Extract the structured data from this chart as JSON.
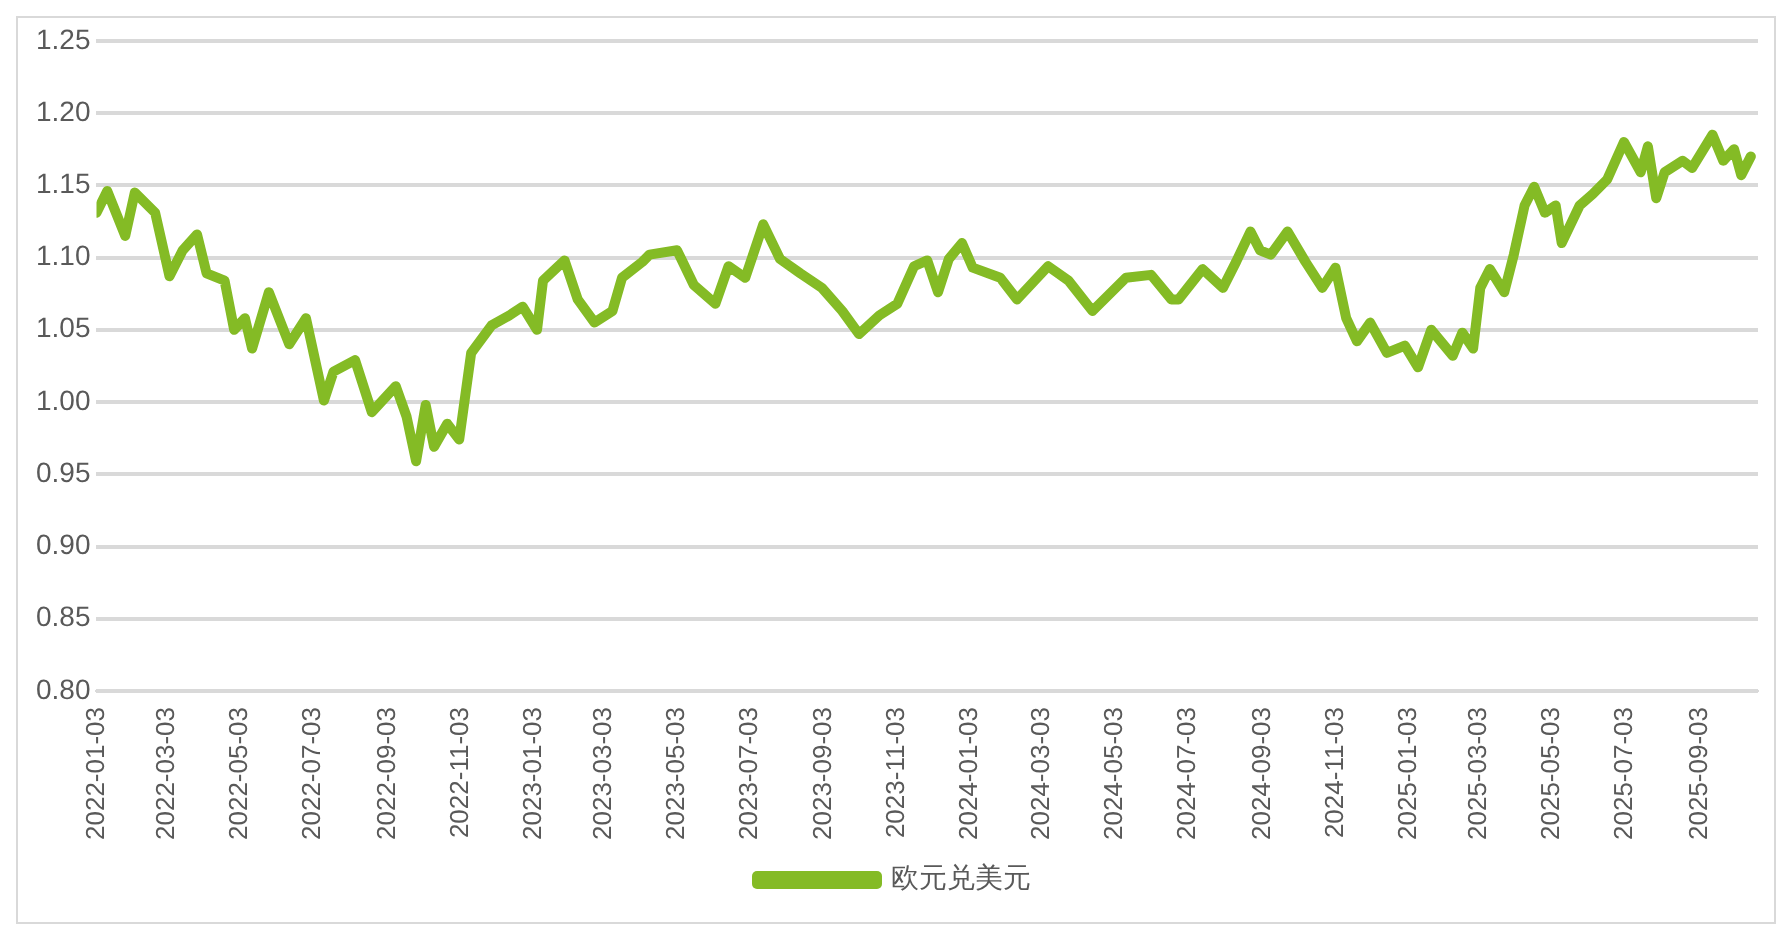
{
  "chart_data": {
    "type": "line",
    "x": [
      "2022-01-03",
      "2022-01-12",
      "2022-01-27",
      "2022-02-04",
      "2022-02-21",
      "2022-03-05",
      "2022-03-16",
      "2022-03-28",
      "2022-04-05",
      "2022-04-20",
      "2022-04-28",
      "2022-05-07",
      "2022-05-13",
      "2022-05-27",
      "2022-06-13",
      "2022-06-27",
      "2022-07-12",
      "2022-07-20",
      "2022-08-07",
      "2022-08-21",
      "2022-09-10",
      "2022-09-19",
      "2022-09-27",
      "2022-10-05",
      "2022-10-12",
      "2022-10-23",
      "2022-11-02",
      "2022-11-12",
      "2022-11-29",
      "2022-12-14",
      "2022-12-25",
      "2023-01-06",
      "2023-01-11",
      "2023-01-29",
      "2023-02-09",
      "2023-02-23",
      "2023-03-10",
      "2023-03-18",
      "2023-04-04",
      "2023-04-10",
      "2023-05-03",
      "2023-05-17",
      "2023-06-04",
      "2023-06-15",
      "2023-06-29",
      "2023-07-14",
      "2023-07-28",
      "2023-08-14",
      "2023-09-01",
      "2023-09-18",
      "2023-10-02",
      "2023-10-19",
      "2023-11-03",
      "2023-11-17",
      "2023-11-28",
      "2023-12-07",
      "2023-12-16",
      "2023-12-27",
      "2024-01-05",
      "2024-01-28",
      "2024-02-11",
      "2024-03-08",
      "2024-03-25",
      "2024-04-14",
      "2024-05-12",
      "2024-06-02",
      "2024-06-19",
      "2024-06-25",
      "2024-07-15",
      "2024-08-01",
      "2024-08-12",
      "2024-08-24",
      "2024-09-01",
      "2024-09-10",
      "2024-09-24",
      "2024-10-09",
      "2024-10-23",
      "2024-11-03",
      "2024-11-12",
      "2024-11-21",
      "2024-12-02",
      "2024-12-16",
      "2024-12-31",
      "2025-01-11",
      "2025-01-22",
      "2025-02-09",
      "2025-02-17",
      "2025-02-26",
      "2025-03-04",
      "2025-03-12",
      "2025-03-24",
      "2025-04-01",
      "2025-04-10",
      "2025-04-18",
      "2025-04-27",
      "2025-05-06",
      "2025-05-11",
      "2025-05-26",
      "2025-06-06",
      "2025-06-18",
      "2025-07-02",
      "2025-07-16",
      "2025-07-22",
      "2025-07-29",
      "2025-08-05",
      "2025-08-20",
      "2025-08-28",
      "2025-09-14",
      "2025-09-23",
      "2025-10-02",
      "2025-10-08",
      "2025-10-16"
    ],
    "series": [
      {
        "name": "欧元兑美元",
        "color": "#84bb25",
        "values": [
          1.131,
          1.146,
          1.115,
          1.145,
          1.131,
          1.087,
          1.105,
          1.116,
          1.089,
          1.084,
          1.05,
          1.058,
          1.037,
          1.076,
          1.04,
          1.058,
          1.001,
          1.021,
          1.029,
          0.993,
          1.011,
          0.99,
          0.959,
          0.998,
          0.969,
          0.985,
          0.974,
          1.034,
          1.053,
          1.06,
          1.066,
          1.05,
          1.084,
          1.098,
          1.071,
          1.055,
          1.063,
          1.086,
          1.097,
          1.102,
          1.105,
          1.081,
          1.068,
          1.094,
          1.086,
          1.123,
          1.099,
          1.089,
          1.079,
          1.063,
          1.047,
          1.06,
          1.068,
          1.094,
          1.098,
          1.076,
          1.099,
          1.11,
          1.093,
          1.086,
          1.071,
          1.094,
          1.084,
          1.063,
          1.086,
          1.088,
          1.071,
          1.071,
          1.092,
          1.079,
          1.097,
          1.118,
          1.105,
          1.102,
          1.118,
          1.097,
          1.079,
          1.093,
          1.058,
          1.042,
          1.055,
          1.034,
          1.039,
          1.024,
          1.05,
          1.032,
          1.048,
          1.037,
          1.079,
          1.092,
          1.076,
          1.102,
          1.136,
          1.149,
          1.131,
          1.136,
          1.11,
          1.136,
          1.144,
          1.154,
          1.18,
          1.159,
          1.177,
          1.141,
          1.159,
          1.167,
          1.162,
          1.185,
          1.167,
          1.175,
          1.157,
          1.17
        ]
      }
    ],
    "xlim": [
      "2022-01-03",
      "2025-10-22"
    ],
    "xticks": [
      "2022-01-03",
      "2022-03-03",
      "2022-05-03",
      "2022-07-03",
      "2022-09-03",
      "2022-11-03",
      "2023-01-03",
      "2023-03-03",
      "2023-05-03",
      "2023-07-03",
      "2023-09-03",
      "2023-11-03",
      "2024-01-03",
      "2024-03-03",
      "2024-05-03",
      "2024-07-03",
      "2024-09-03",
      "2024-11-03",
      "2025-01-03",
      "2025-03-03",
      "2025-05-03",
      "2025-07-03",
      "2025-09-03"
    ],
    "ylim": [
      0.8,
      1.25
    ],
    "yticks": [
      {
        "value": 0.8,
        "label": "0.80"
      },
      {
        "value": 0.85,
        "label": "0.85"
      },
      {
        "value": 0.9,
        "label": "0.90"
      },
      {
        "value": 0.95,
        "label": "0.95"
      },
      {
        "value": 1.0,
        "label": "1.00"
      },
      {
        "value": 1.05,
        "label": "1.05"
      },
      {
        "value": 1.1,
        "label": "1.10"
      },
      {
        "value": 1.15,
        "label": "1.15"
      },
      {
        "value": 1.2,
        "label": "1.20"
      },
      {
        "value": 1.25,
        "label": "1.25"
      }
    ],
    "grid": "y",
    "legend": "bottom",
    "marker": "none",
    "line_style": "solid"
  }
}
